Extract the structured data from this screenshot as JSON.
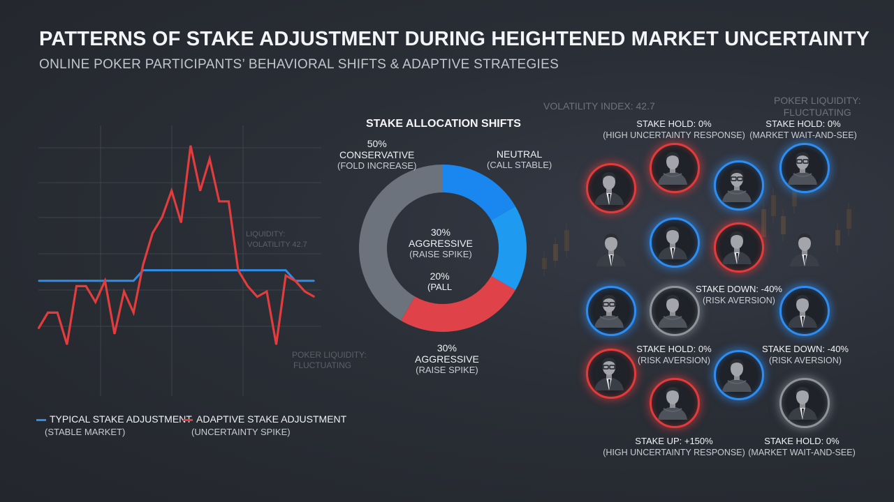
{
  "header": {
    "title": "PATTERNS OF STAKE ADJUSTMENT DURING HEIGHTENED MARKET UNCERTAINTY",
    "subtitle": "ONLINE POKER PARTICIPANTS’ BEHAVIORAL SHIFTS & ADAPTIVE STRATEGIES"
  },
  "background_text": {
    "volatility": "VOLATILITY INDEX: 42.7",
    "liquidity_top": "POKER LIQUIDITY:\nFLUCTUATING",
    "chart_liquidity_a": "LIQUIDITY:",
    "chart_liquidity_b": "VOLATILITY 42.7",
    "chart_liquidity_c": "POKER LIQUIDITY:",
    "chart_liquidity_d": "FLUCTUATING"
  },
  "colors": {
    "typical": "#2f8de8",
    "adaptive": "#e23c3c",
    "neutral_grey": "#6d737c",
    "blue_light": "#1e9bf0",
    "blue_bright": "#2d8cf0",
    "red_ring": "#e33b3b",
    "blue_ring": "#2e8df2",
    "grey_ring": "#8f949c"
  },
  "chart_data": [
    {
      "type": "line",
      "title": "",
      "xlabel": "",
      "ylabel": "",
      "grid": true,
      "legend": "bottom-left",
      "x": [
        0,
        1,
        2,
        3,
        4,
        5,
        6,
        7,
        8,
        9,
        10,
        11,
        12,
        13,
        14,
        15,
        16,
        17,
        18,
        19,
        20,
        21,
        22,
        23,
        24,
        25,
        26,
        27,
        28,
        29
      ],
      "ylim": [
        0,
        100
      ],
      "series": [
        {
          "name": "TYPICAL STAKE ADJUSTMENT",
          "name_sub": "(STABLE MARKET)",
          "color": "#2f8de8",
          "values": [
            44,
            44,
            44,
            44,
            44,
            44,
            44,
            44,
            44,
            44,
            44,
            48,
            48,
            48,
            48,
            48,
            48,
            48,
            48,
            48,
            48,
            48,
            48,
            48,
            48,
            48,
            48,
            44,
            44,
            44
          ]
        },
        {
          "name": "ADAPTIVE STAKE ADJUSTMENT",
          "name_sub": "(UNCERTAINTY SPIKE)",
          "color": "#e23c3c",
          "values": [
            26,
            32,
            32,
            20,
            42,
            42,
            36,
            44,
            24,
            40,
            32,
            50,
            62,
            68,
            78,
            66,
            95,
            78,
            90,
            74,
            74,
            48,
            42,
            38,
            40,
            20,
            46,
            44,
            40,
            38
          ]
        }
      ]
    },
    {
      "type": "pie",
      "title": "STAKE ALLOCATION SHIFTS",
      "slices": [
        {
          "label": "CONSERVATIVE",
          "sub": "(FOLD INCREASE)",
          "value": 50,
          "value_label": "50%",
          "color": "#6d737c"
        },
        {
          "label": "NEUTRAL",
          "sub": "(CALL STABLE)",
          "value": 20,
          "value_label": "",
          "color": "#1a86ef"
        },
        {
          "label": "(PALL",
          "sub": "",
          "value": 20,
          "value_label": "20%",
          "color": "#1e9bf0"
        },
        {
          "label": "AGGRESSIVE",
          "sub": "(RAISE SPIKE)",
          "value": 30,
          "value_label": "30%",
          "color": "#e0424a"
        }
      ],
      "center_label": {
        "value": "30%",
        "label": "AGGRESSIVE",
        "sub": "(RAISE SPIKE)"
      },
      "bottom_label": {
        "value": "30%",
        "label": "AGGRESSIVE",
        "sub": "(RAISE SPIKE)"
      }
    }
  ],
  "participants": {
    "labels": [
      {
        "title": "STAKE HOLD: 0%",
        "sub": "(HIGH UNCERTAINTY RESPONSE)"
      },
      {
        "title": "STAKE HOLD: 0%",
        "sub": "(MARKET WAIT-AND-SEE)"
      },
      {
        "title": "STAKE DOWN: -40%",
        "sub": "(RISK AVERSION)"
      },
      {
        "title": "STAKE HOLD: 0%",
        "sub": "(RISK AVERSION)"
      },
      {
        "title": "STAKE DOWN: -40%",
        "sub": "(RISK AVERSION)"
      },
      {
        "title": "STAKE UP: +150%",
        "sub": "(HIGH UNCERTAINTY RESPONSE)"
      },
      {
        "title": "STAKE HOLD: 0%",
        "sub": "(MARKET WAIT-AND-SEE)"
      }
    ],
    "avatars": [
      {
        "ring": "red",
        "glasses": false,
        "hoodie": false
      },
      {
        "ring": "red",
        "glasses": false,
        "hoodie": true
      },
      {
        "ring": "blue",
        "glasses": true,
        "hoodie": true
      },
      {
        "ring": "blue",
        "glasses": true,
        "hoodie": true
      },
      {
        "ring": "none",
        "glasses": false,
        "hoodie": false
      },
      {
        "ring": "blue",
        "glasses": false,
        "hoodie": false
      },
      {
        "ring": "red",
        "glasses": false,
        "hoodie": false
      },
      {
        "ring": "none",
        "glasses": false,
        "hoodie": false
      },
      {
        "ring": "blue",
        "glasses": true,
        "hoodie": true
      },
      {
        "ring": "grey",
        "glasses": false,
        "hoodie": true
      },
      {
        "ring": "blue",
        "glasses": false,
        "hoodie": false
      },
      {
        "ring": "red",
        "glasses": true,
        "hoodie": false
      },
      {
        "ring": "red",
        "glasses": false,
        "hoodie": true
      },
      {
        "ring": "blue",
        "glasses": false,
        "hoodie": true
      },
      {
        "ring": "grey",
        "glasses": false,
        "hoodie": false
      }
    ]
  }
}
